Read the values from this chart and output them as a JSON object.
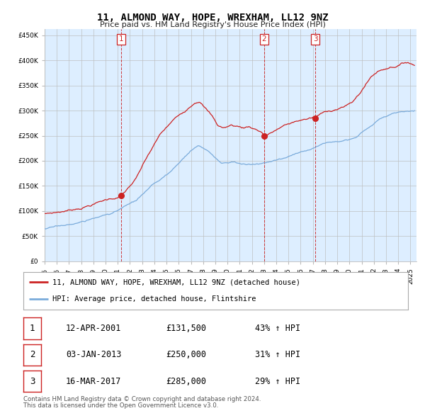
{
  "title": "11, ALMOND WAY, HOPE, WREXHAM, LL12 9NZ",
  "subtitle": "Price paid vs. HM Land Registry's House Price Index (HPI)",
  "hpi_color": "#7aabdb",
  "property_color": "#cc2222",
  "plot_bg": "#ddeeff",
  "ylim": [
    0,
    460000
  ],
  "yticks": [
    0,
    50000,
    100000,
    150000,
    200000,
    250000,
    300000,
    350000,
    400000,
    450000
  ],
  "sales": [
    {
      "label": "1",
      "date": "12-APR-2001",
      "price": 131500,
      "hpi_pct": "43% ↑ HPI",
      "x_year": 2001.28
    },
    {
      "label": "2",
      "date": "03-JAN-2013",
      "price": 250000,
      "hpi_pct": "31% ↑ HPI",
      "x_year": 2013.01
    },
    {
      "label": "3",
      "date": "16-MAR-2017",
      "price": 285000,
      "hpi_pct": "29% ↑ HPI",
      "x_year": 2017.21
    }
  ],
  "legend_entries": [
    "11, ALMOND WAY, HOPE, WREXHAM, LL12 9NZ (detached house)",
    "HPI: Average price, detached house, Flintshire"
  ],
  "footer": [
    "Contains HM Land Registry data © Crown copyright and database right 2024.",
    "This data is licensed under the Open Government Licence v3.0."
  ],
  "xmin": 1995.0,
  "xmax": 2025.5
}
